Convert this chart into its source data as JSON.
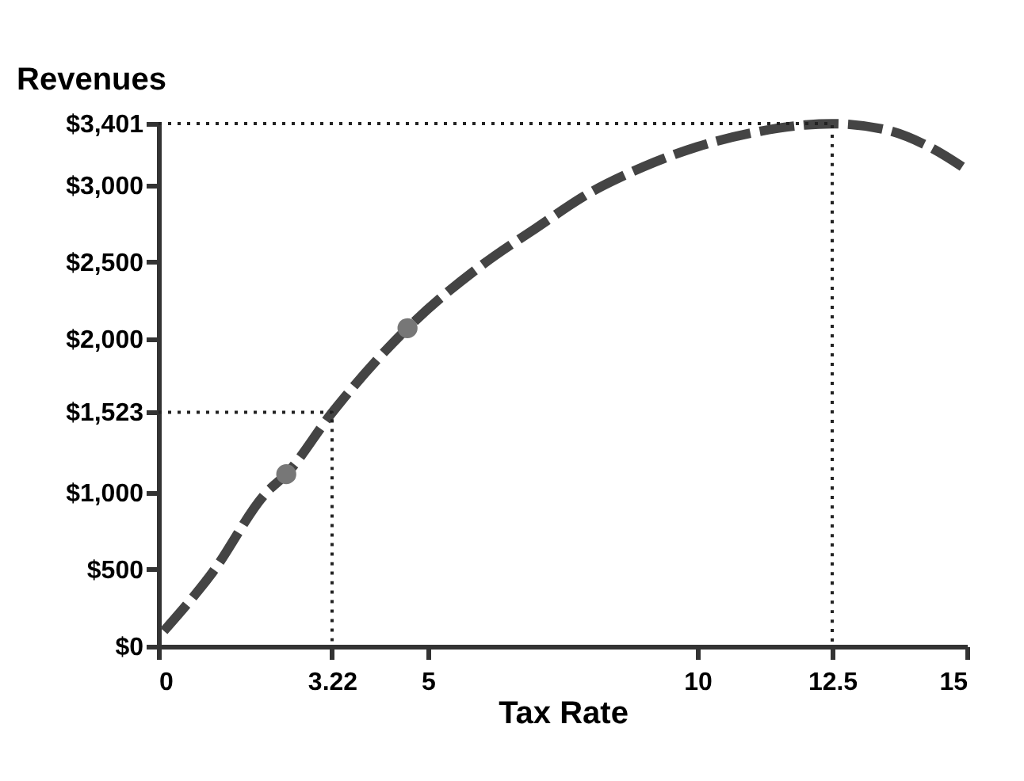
{
  "chart_data": {
    "type": "line",
    "ylabel": "Revenues",
    "xlabel": "Tax Rate",
    "xlim": [
      0,
      15
    ],
    "xticks": [
      0,
      3.22,
      5,
      10,
      12.5,
      15
    ],
    "ylim": [
      0,
      3401
    ],
    "yticks": [
      {
        "value": 0,
        "label": "$0"
      },
      {
        "value": 500,
        "label": "$500"
      },
      {
        "value": 1000,
        "label": "$1,000"
      },
      {
        "value": 1523,
        "label": "$1,523"
      },
      {
        "value": 2000,
        "label": "$2,000"
      },
      {
        "value": 2500,
        "label": "$2,500"
      },
      {
        "value": 3000,
        "label": "$3,000"
      },
      {
        "value": 3401,
        "label": "$3,401"
      }
    ],
    "grid": false,
    "series": [
      {
        "color": "#444444",
        "line_style": "dashed",
        "marker": "none",
        "x": [
          0.1,
          1,
          2,
          2.37,
          3.22,
          4.62,
          6,
          7,
          8,
          9,
          10,
          11,
          12.5,
          13.5,
          14.3,
          15
        ],
        "values": [
          100,
          480,
          1000,
          1120,
          1520,
          2070,
          2480,
          2720,
          2950,
          3120,
          3250,
          3340,
          3400,
          3360,
          3250,
          3100
        ]
      },
      {
        "type": "scatter",
        "color": "#777777",
        "marker": "circle",
        "x": [
          2.37,
          4.62
        ],
        "values": [
          1120,
          2070
        ]
      },
      {
        "type": "line",
        "color": "#222222",
        "line_style": "dotted",
        "marker": "none",
        "x": [
          0,
          3.22,
          3.22
        ],
        "values": [
          1523,
          1523,
          0
        ]
      },
      {
        "type": "line",
        "color": "#222222",
        "line_style": "dotted",
        "marker": "none",
        "x": [
          0,
          12.5,
          12.5
        ],
        "values": [
          3401,
          3401,
          0
        ]
      }
    ]
  }
}
